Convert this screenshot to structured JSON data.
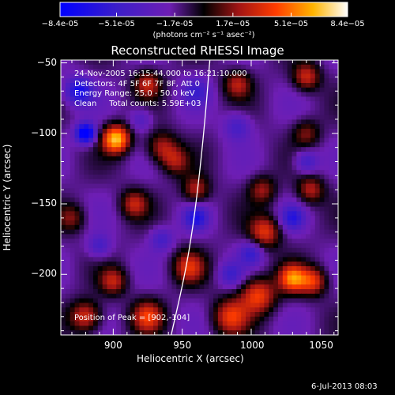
{
  "chart_data": {
    "type": "heatmap",
    "title": "Reconstructed RHESSI Image",
    "xlabel": "Heliocentric X (arcsec)",
    "ylabel": "Heliocentric Y (arcsec)",
    "xlim": [
      862,
      1063
    ],
    "ylim": [
      -243,
      -48
    ],
    "xticks": [
      900,
      950,
      1000,
      1050
    ],
    "yticks": [
      -50,
      -100,
      -150,
      -200
    ],
    "colorbar": {
      "min": -8.4e-05,
      "max": 8.4e-05,
      "tick_values": [
        -8.4e-05,
        -5.1e-05,
        -1.7e-05,
        1.7e-05,
        5.1e-05,
        8.4e-05
      ],
      "tick_labels": [
        "-8.4e-05",
        "-5.1e-05",
        "-1.7e-05",
        "1.7e-05",
        "5.1e-05",
        "8.4e-05"
      ],
      "unit_label": "(photons cm⁻² s⁻¹ asec⁻²)"
    },
    "annotations": [
      "24-Nov-2005 16:15:44.000 to 16:21:10.000",
      "Detectors: 4F 5F 6F 7F 8F, Att 0",
      "Energy Range: 25.0 - 50.0 keV",
      "Clean     Total counts: 5.59E+03"
    ],
    "peak_annotation": "Position of Peak = [902,-104]",
    "peak_position": [
      902,
      -104
    ],
    "limb_curve": [
      [
        942,
        -243
      ],
      [
        952,
        -200
      ],
      [
        958,
        -165
      ],
      [
        963,
        -125
      ],
      [
        967,
        -85
      ],
      [
        970,
        -48
      ]
    ],
    "sources": [
      {
        "x": 902,
        "y": -104,
        "v": 8.4e-05,
        "s": 7
      },
      {
        "x": 1030,
        "y": -203,
        "v": 6.5e-05,
        "s": 7
      },
      {
        "x": 935,
        "y": -110,
        "v": 4e-05,
        "s": 8
      },
      {
        "x": 925,
        "y": -65,
        "v": 4e-05,
        "s": 7
      },
      {
        "x": 990,
        "y": -65,
        "v": 3.8e-05,
        "s": 7
      },
      {
        "x": 1040,
        "y": -60,
        "v": 4.5e-05,
        "s": 7
      },
      {
        "x": 1040,
        "y": -100,
        "v": 3e-05,
        "s": 7
      },
      {
        "x": 1043,
        "y": -140,
        "v": 4e-05,
        "s": 7
      },
      {
        "x": 1008,
        "y": -140,
        "v": 3.5e-05,
        "s": 7
      },
      {
        "x": 1010,
        "y": -170,
        "v": 5e-05,
        "s": 8
      },
      {
        "x": 1005,
        "y": -215,
        "v": 5.5e-05,
        "s": 9
      },
      {
        "x": 1045,
        "y": -205,
        "v": 5e-05,
        "s": 7
      },
      {
        "x": 915,
        "y": -150,
        "v": 4e-05,
        "s": 7
      },
      {
        "x": 955,
        "y": -195,
        "v": 4.5e-05,
        "s": 8
      },
      {
        "x": 985,
        "y": -230,
        "v": 5e-05,
        "s": 9
      },
      {
        "x": 960,
        "y": -140,
        "v": 4e-05,
        "s": 7
      },
      {
        "x": 945,
        "y": -120,
        "v": 3.2e-05,
        "s": 7
      },
      {
        "x": 900,
        "y": -205,
        "v": 4e-05,
        "s": 7
      },
      {
        "x": 880,
        "y": -230,
        "v": 5e-05,
        "s": 8
      },
      {
        "x": 925,
        "y": -230,
        "v": 5e-05,
        "s": 8
      },
      {
        "x": 870,
        "y": -160,
        "v": 3e-05,
        "s": 7
      },
      {
        "x": 875,
        "y": -70,
        "v": -5.5e-05,
        "s": 7
      },
      {
        "x": 880,
        "y": -100,
        "v": -8.4e-05,
        "s": 5
      },
      {
        "x": 960,
        "y": -160,
        "v": -4.5e-05,
        "s": 6
      },
      {
        "x": 1030,
        "y": -160,
        "v": -4e-05,
        "s": 6
      },
      {
        "x": 1040,
        "y": -120,
        "v": -3.5e-05,
        "s": 6
      },
      {
        "x": 990,
        "y": -95,
        "v": -3e-05,
        "s": 7
      },
      {
        "x": 960,
        "y": -70,
        "v": -3e-05,
        "s": 7
      },
      {
        "x": 1000,
        "y": -185,
        "v": -3.5e-05,
        "s": 6
      },
      {
        "x": 935,
        "y": -175,
        "v": -3e-05,
        "s": 6
      },
      {
        "x": 890,
        "y": -180,
        "v": -3e-05,
        "s": 6
      },
      {
        "x": 985,
        "y": -200,
        "v": -3e-05,
        "s": 6
      },
      {
        "x": 920,
        "y": -90,
        "v": -2.5e-05,
        "s": 6
      }
    ]
  },
  "footer": {
    "timestamp": "6-Jul-2013 08:03"
  }
}
